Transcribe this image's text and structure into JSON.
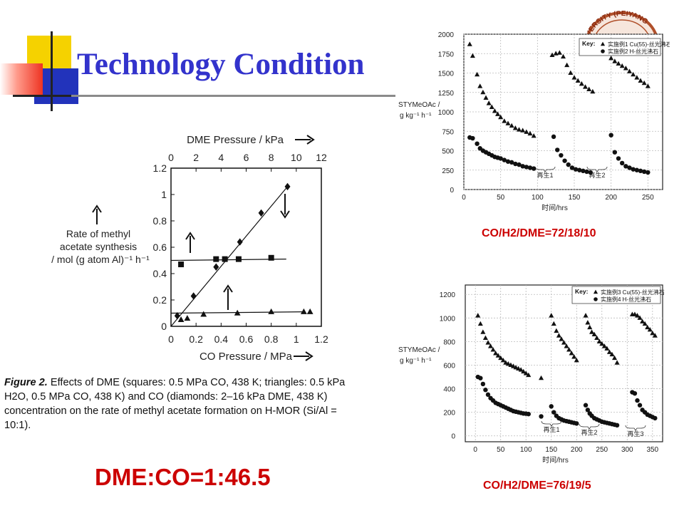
{
  "slide": {
    "title": "Technology Condition",
    "ratio_text": "DME:CO=1:46.5",
    "caption_lead": "Figure 2.",
    "caption_text": "Effects of DME (squares: 0.5 MPa CO, 438 K; triangles: 0.5 kPa H2O, 0.5 MPa CO, 438 K) and CO (diamonds: 2–16 kPa DME, 438 K) concentration on the rate of methyl acetate formation on H-MOR (Si/Al = 10:1).",
    "condition_top": "CO/H2/DME=72/18/10",
    "condition_bottom": "CO/H2/DME=76/19/5",
    "logo_text": "VERSITY (PEIYANG"
  },
  "colors": {
    "title": "#3333cc",
    "accent_red": "#cc0000",
    "deco_yellow": "#f5d200",
    "deco_blue": "#2233bb",
    "deco_red": "#ee3322"
  },
  "chart_data": [
    {
      "type": "scatter",
      "xlabel": "CO Pressure / MPa",
      "x2label": "DME Pressure / kPa",
      "ylabel": "Rate of methyl acetate synthesis / mol (g atom Al)⁻¹ h⁻¹",
      "xlim": [
        0,
        1.2
      ],
      "x2lim": [
        0,
        12
      ],
      "ylim": [
        0,
        1.2
      ],
      "xticks": [
        "0",
        "0.2",
        "0.4",
        "0.6",
        "0.8",
        "1",
        "1.2"
      ],
      "x2ticks": [
        "0",
        "2",
        "4",
        "6",
        "8",
        "10",
        "12"
      ],
      "yticks": [
        "0",
        "0.2",
        "0.4",
        "0.6",
        "0.8",
        "1",
        "1.2"
      ],
      "series": [
        {
          "marker": "square",
          "axis": "top",
          "x": [
            0.8,
            3.6,
            4.3,
            5.4,
            8.0
          ],
          "y": [
            0.47,
            0.51,
            0.51,
            0.51,
            0.52
          ]
        },
        {
          "marker": "triangle",
          "axis": "top",
          "x": [
            0.8,
            1.3,
            2.6,
            5.3,
            8.0,
            10.6,
            11.1
          ],
          "y": [
            0.05,
            0.06,
            0.09,
            0.1,
            0.11,
            0.11,
            0.11
          ]
        },
        {
          "marker": "diamond",
          "axis": "bottom",
          "x": [
            0.05,
            0.18,
            0.36,
            0.55,
            0.72,
            0.93
          ],
          "y": [
            0.08,
            0.23,
            0.45,
            0.64,
            0.86,
            1.06
          ]
        }
      ],
      "fit_lines": [
        {
          "axis": "top",
          "x": [
            0,
            9.2
          ],
          "y": [
            0.5,
            0.51
          ]
        },
        {
          "axis": "top",
          "x": [
            0,
            10.6
          ],
          "y": [
            0.1,
            0.11
          ]
        },
        {
          "axis": "bottom",
          "x": [
            0,
            0.93
          ],
          "y": [
            0,
            1.06
          ]
        }
      ]
    },
    {
      "type": "scatter",
      "xlabel": "时间/hrs",
      "ylabel": "STYMeOAc / g kg⁻¹ h⁻¹",
      "xlim": [
        0,
        270
      ],
      "ylim": [
        0,
        2000
      ],
      "xticks": [
        "0",
        "50",
        "100",
        "150",
        "200",
        "250"
      ],
      "yticks": [
        "0",
        "250",
        "500",
        "750",
        "1000",
        "1250",
        "1500",
        "1750",
        "2000"
      ],
      "legend_position": "top-right",
      "legend_title": "Key:",
      "regeneration_labels": [
        "再生1",
        "再生2"
      ],
      "series": [
        {
          "name": "实施例1 Cu(55)-丝光沸石",
          "marker": "triangle",
          "x": [
            8,
            12,
            18,
            22,
            26,
            30,
            34,
            38,
            42,
            46,
            50,
            55,
            60,
            65,
            70,
            75,
            80,
            85,
            90,
            95,
            120,
            125,
            130,
            135,
            140,
            145,
            150,
            155,
            160,
            165,
            170,
            175,
            200,
            205,
            210,
            215,
            220,
            225,
            230,
            235,
            240,
            245,
            250
          ],
          "y": [
            1870,
            1720,
            1480,
            1330,
            1250,
            1180,
            1110,
            1060,
            1010,
            970,
            930,
            880,
            850,
            820,
            790,
            770,
            760,
            740,
            720,
            690,
            1730,
            1750,
            1760,
            1710,
            1600,
            1500,
            1440,
            1400,
            1360,
            1320,
            1290,
            1260,
            1690,
            1650,
            1620,
            1590,
            1560,
            1520,
            1480,
            1440,
            1400,
            1370,
            1330
          ]
        },
        {
          "name": "实施例2 H-丝光沸石",
          "marker": "circle",
          "x": [
            8,
            12,
            18,
            22,
            26,
            30,
            34,
            38,
            42,
            46,
            50,
            55,
            60,
            65,
            70,
            75,
            80,
            85,
            90,
            95,
            122,
            127,
            132,
            137,
            142,
            147,
            152,
            157,
            162,
            167,
            172,
            200,
            205,
            210,
            215,
            220,
            225,
            230,
            235,
            240,
            245,
            250
          ],
          "y": [
            670,
            660,
            590,
            530,
            500,
            480,
            460,
            440,
            420,
            410,
            400,
            380,
            360,
            350,
            330,
            320,
            300,
            290,
            280,
            270,
            680,
            510,
            440,
            370,
            320,
            280,
            260,
            250,
            240,
            230,
            220,
            700,
            480,
            400,
            340,
            300,
            280,
            260,
            250,
            240,
            230,
            220
          ]
        }
      ]
    },
    {
      "type": "scatter",
      "xlabel": "时间/hrs",
      "ylabel": "STYMeOAc / g kg⁻¹ h⁻¹",
      "xlim": [
        -20,
        370
      ],
      "ylim": [
        -50,
        1280
      ],
      "xticks": [
        "0",
        "50",
        "100",
        "150",
        "200",
        "250",
        "300",
        "350"
      ],
      "yticks": [
        "0",
        "200",
        "400",
        "600",
        "800",
        "1000",
        "1200"
      ],
      "legend_position": "top-right",
      "legend_title": "Key:",
      "regeneration_labels": [
        "再生1",
        "再生2",
        "再生3"
      ],
      "series": [
        {
          "name": "实施例3 Cu(55)-丝光沸石",
          "marker": "triangle",
          "x": [
            5,
            10,
            15,
            20,
            25,
            30,
            35,
            40,
            45,
            50,
            55,
            60,
            65,
            70,
            75,
            80,
            85,
            90,
            95,
            100,
            105,
            130,
            150,
            155,
            160,
            165,
            170,
            175,
            180,
            185,
            190,
            195,
            200,
            218,
            222,
            226,
            230,
            235,
            240,
            245,
            250,
            255,
            260,
            265,
            270,
            275,
            280,
            310,
            315,
            320,
            325,
            330,
            335,
            340,
            345,
            350,
            355
          ],
          "y": [
            1020,
            950,
            880,
            830,
            790,
            760,
            730,
            700,
            680,
            660,
            640,
            620,
            610,
            600,
            590,
            580,
            570,
            560,
            545,
            530,
            515,
            490,
            1020,
            950,
            890,
            850,
            820,
            790,
            760,
            730,
            700,
            670,
            640,
            1020,
            960,
            920,
            880,
            860,
            830,
            800,
            780,
            760,
            740,
            710,
            690,
            660,
            620,
            1030,
            1030,
            1020,
            1000,
            970,
            950,
            920,
            900,
            870,
            850
          ]
        },
        {
          "name": "实施例4 H-丝光沸石",
          "marker": "circle",
          "x": [
            5,
            10,
            15,
            20,
            25,
            30,
            35,
            40,
            45,
            50,
            55,
            60,
            65,
            70,
            75,
            80,
            85,
            90,
            95,
            100,
            105,
            130,
            150,
            155,
            160,
            165,
            170,
            175,
            180,
            185,
            190,
            195,
            200,
            218,
            222,
            226,
            230,
            235,
            240,
            245,
            250,
            255,
            260,
            265,
            270,
            275,
            280,
            310,
            315,
            320,
            325,
            330,
            335,
            340,
            345,
            350,
            355
          ],
          "y": [
            500,
            490,
            440,
            390,
            350,
            320,
            300,
            280,
            270,
            260,
            250,
            240,
            230,
            220,
            210,
            205,
            200,
            195,
            190,
            188,
            185,
            165,
            250,
            200,
            170,
            150,
            140,
            130,
            125,
            120,
            115,
            110,
            105,
            260,
            220,
            190,
            170,
            150,
            140,
            130,
            120,
            115,
            110,
            105,
            100,
            95,
            90,
            370,
            360,
            300,
            260,
            220,
            200,
            180,
            170,
            160,
            150
          ]
        }
      ]
    }
  ]
}
